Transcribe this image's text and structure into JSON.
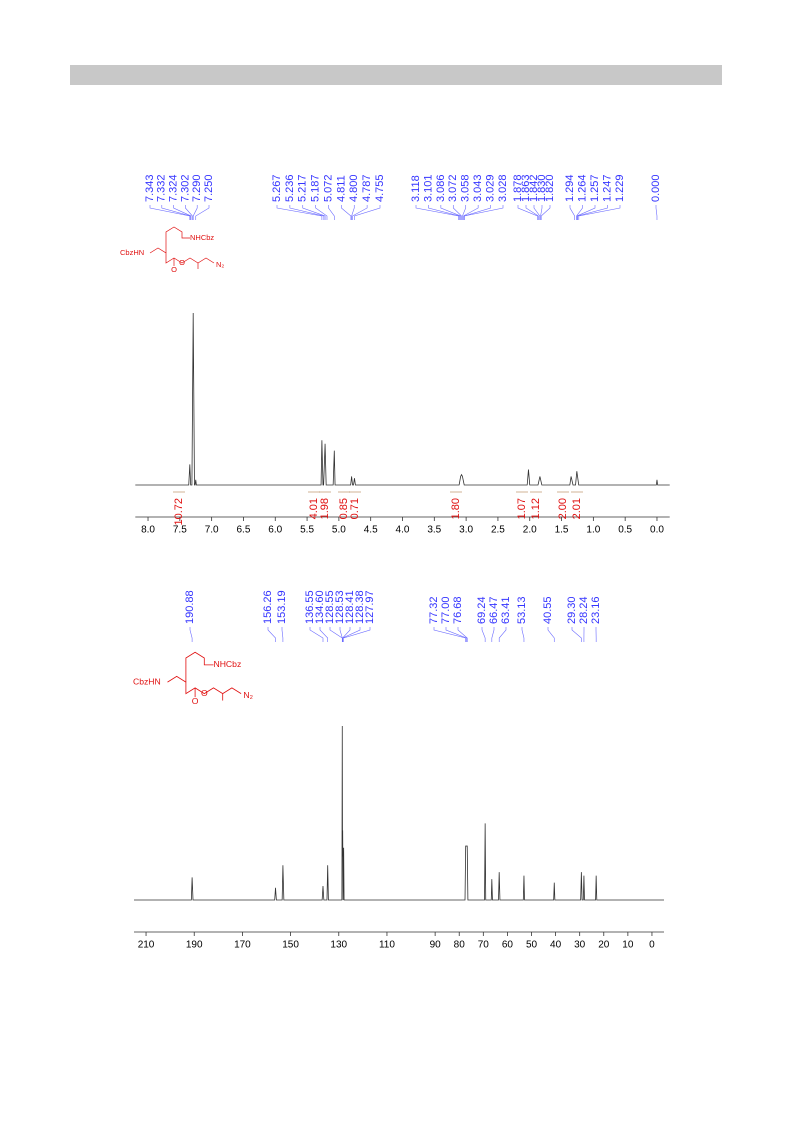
{
  "chart_data": [
    {
      "type": "line",
      "peak_labels": [
        "7.343",
        "7.332",
        "7.324",
        "7.302",
        "7.290",
        "7.250",
        "5.267",
        "5.236",
        "5.217",
        "5.187",
        "5.072",
        "4.811",
        "4.800",
        "4.787",
        "4.755",
        "3.118",
        "3.101",
        "3.086",
        "3.072",
        "3.058",
        "3.043",
        "3.029",
        "3.028",
        "1.878",
        "1.863",
        "1.842",
        "1.830",
        "1.820",
        "1.294",
        "1.264",
        "1.257",
        "1.247",
        "1.229",
        "0.000"
      ],
      "structure_labels": [
        "NHCbz",
        "CbzHN",
        "O",
        "O",
        "N₂"
      ],
      "integrals": {
        "values": [
          10.72,
          4.01,
          1.98,
          0.85,
          0.71,
          1.8,
          1.07,
          1.12,
          2.0,
          2.01
        ],
        "value_labels": [
          "10.72",
          "4.01",
          "1.98",
          "0.85",
          "0.71",
          "1.80",
          "1.07",
          "1.12",
          "2.00",
          "2.01"
        ]
      },
      "x": [
        8.2,
        7.36,
        7.343,
        7.33,
        7.31,
        7.29,
        7.27,
        7.26,
        7.25,
        7.24,
        5.28,
        5.267,
        5.25,
        5.24,
        5.217,
        5.2,
        5.09,
        5.072,
        5.06,
        4.815,
        4.8,
        4.785,
        4.77,
        4.755,
        4.74,
        3.11,
        3.086,
        3.072,
        3.058,
        3.03,
        2.04,
        2.02,
        2.0,
        1.87,
        1.84,
        1.81,
        1.37,
        1.35,
        1.32,
        1.28,
        1.26,
        1.23,
        0.01,
        0.0,
        -0.01,
        -0.2
      ],
      "values": [
        0,
        0,
        12,
        0,
        0,
        100,
        0,
        0,
        3,
        0,
        0,
        26,
        0,
        0,
        24,
        0,
        0,
        20,
        0,
        0,
        5,
        0,
        0,
        4,
        0,
        0,
        5,
        6,
        5,
        0,
        0,
        9,
        0,
        0,
        5,
        0,
        0,
        5,
        0,
        0,
        8,
        0,
        0,
        3,
        0,
        0
      ],
      "color": "#333333",
      "xlim": [
        8.2,
        -0.2
      ],
      "ylim": [
        0,
        100
      ],
      "xticks": [
        {
          "value": 8,
          "label": "8.0"
        },
        7.5,
        {
          "value": 7,
          "label": "7.0"
        },
        6.5,
        {
          "value": 6,
          "label": "6.0"
        },
        5.5,
        {
          "value": 5,
          "label": "5.0"
        },
        4.5,
        {
          "value": 4,
          "label": "4.0"
        },
        3.5,
        {
          "value": 3,
          "label": "3.0"
        },
        2.5,
        {
          "value": 2,
          "label": "2.0"
        },
        1.5,
        {
          "value": 1,
          "label": "1.0"
        },
        0.5,
        {
          "value": 0,
          "label": "0.0"
        }
      ]
    },
    {
      "type": "line",
      "peak_labels": [
        "190.88",
        "156.26",
        "153.19",
        "136.55",
        "134.60",
        "128.55",
        "128.53",
        "128.41",
        "128.38",
        "127.97",
        "77.32",
        "77.00",
        "76.68",
        "69.24",
        "66.47",
        "63.41",
        "53.13",
        "40.55",
        "29.30",
        "28.24",
        "23.16"
      ],
      "structure_labels": [
        "NHCbz",
        "CbzHN",
        "O",
        "O",
        "N₂"
      ],
      "x": [
        215,
        191.2,
        190.88,
        190.5,
        156.6,
        156.26,
        155.9,
        153.5,
        153.19,
        152.8,
        136.9,
        136.55,
        136.2,
        134.9,
        134.6,
        134.3,
        128.7,
        128.55,
        128.45,
        128.38,
        128.2,
        127.97,
        127.8,
        77.6,
        77.32,
        77.0,
        76.68,
        76.4,
        69.5,
        69.24,
        69.0,
        66.7,
        66.47,
        66.2,
        63.7,
        63.41,
        63.1,
        53.4,
        53.13,
        52.9,
        40.8,
        40.55,
        40.3,
        29.6,
        29.3,
        29.0,
        28.5,
        28.24,
        28.0,
        23.4,
        23.16,
        22.9,
        -5
      ],
      "values": [
        0,
        0,
        13,
        0,
        0,
        7,
        0,
        0,
        20,
        0,
        0,
        8,
        0,
        0,
        20,
        0,
        0,
        100,
        25,
        40,
        0,
        30,
        0,
        0,
        31,
        31,
        31,
        0,
        0,
        44,
        0,
        0,
        12,
        0,
        0,
        16,
        0,
        0,
        14,
        0,
        0,
        10,
        0,
        0,
        16,
        0,
        0,
        14,
        0,
        0,
        14,
        0,
        0
      ],
      "color": "#333333",
      "xlim": [
        215,
        -5
      ],
      "ylim": [
        0,
        100
      ],
      "xticks": [
        210,
        190,
        170,
        150,
        130,
        110,
        90,
        80,
        70,
        60,
        50,
        40,
        30,
        20,
        10,
        0
      ]
    }
  ]
}
